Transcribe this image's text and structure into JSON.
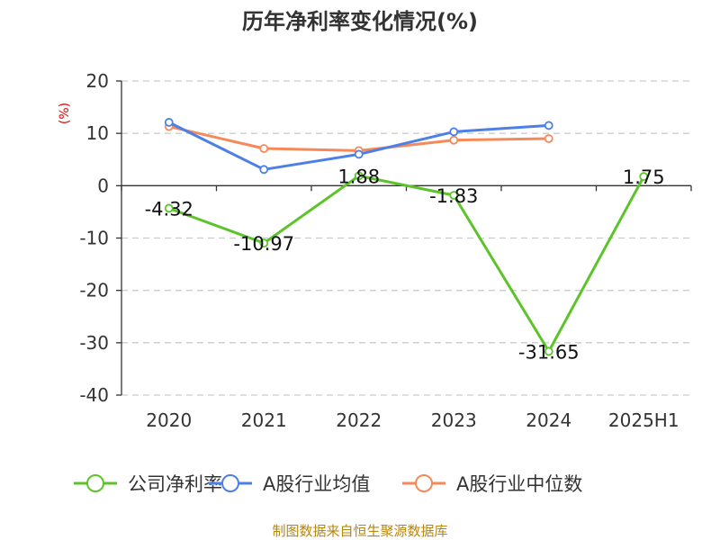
{
  "chart_data": {
    "type": "line",
    "title": "历年净利率变化情况(%)",
    "ylabel": "(%)",
    "xlabel": "",
    "categories": [
      "2020",
      "2021",
      "2022",
      "2023",
      "2024",
      "2025H1"
    ],
    "ylim": [
      -40,
      20
    ],
    "yticks": [
      20,
      10,
      0,
      -10,
      -20,
      -30,
      -40
    ],
    "grid": true,
    "legend_position": "bottom",
    "series": [
      {
        "name": "公司净利率",
        "color": "#5cc42a",
        "values": [
          -4.32,
          -10.97,
          1.88,
          -1.83,
          -31.65,
          1.75
        ],
        "data_labels": [
          "-4.32",
          "-10.97",
          "1.88",
          "-1.83",
          "-31.65",
          "1.75"
        ]
      },
      {
        "name": "A股行业均值",
        "color": "#4d80e6",
        "values": [
          12.1,
          3.1,
          6.0,
          10.3,
          11.5,
          null
        ]
      },
      {
        "name": "A股行业中位数",
        "color": "#f5895a",
        "values": [
          11.3,
          7.1,
          6.7,
          8.7,
          9.0,
          null
        ]
      }
    ]
  },
  "source_text": "制图数据来自恒生聚源数据库"
}
